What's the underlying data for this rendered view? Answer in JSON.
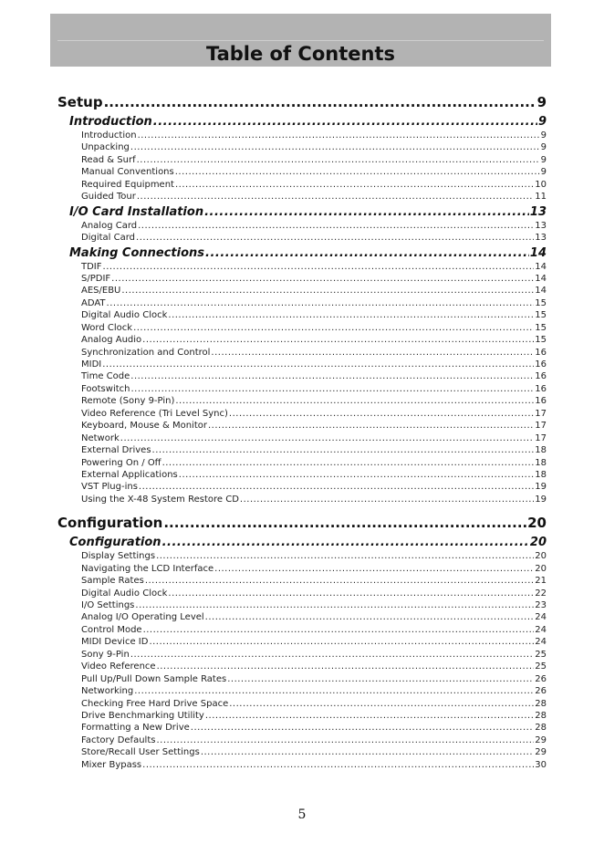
{
  "title": "Table of Contents",
  "sections": [
    {
      "label": "Setup",
      "page": "9",
      "subsections": [
        {
          "label": "Introduction",
          "page": "9",
          "items": [
            {
              "label": "Introduction",
              "page": "9"
            },
            {
              "label": "Unpacking",
              "page": "9"
            },
            {
              "label": "Read & Surf",
              "page": "9"
            },
            {
              "label": "Manual Conventions",
              "page": "9"
            },
            {
              "label": "Required Equipment",
              "page": "10"
            },
            {
              "label": "Guided Tour",
              "page": "11"
            }
          ]
        },
        {
          "label": "I/O Card Installation",
          "page": "13",
          "items": [
            {
              "label": "Analog Card",
              "page": "13"
            },
            {
              "label": "Digital Card",
              "page": "13"
            }
          ]
        },
        {
          "label": "Making Connections",
          "page": "14",
          "items": [
            {
              "label": "TDIF",
              "page": "14"
            },
            {
              "label": "S/PDIF",
              "page": "14"
            },
            {
              "label": "AES/EBU",
              "page": "14"
            },
            {
              "label": "ADAT",
              "page": "15"
            },
            {
              "label": "Digital Audio Clock",
              "page": "15"
            },
            {
              "label": "Word Clock",
              "page": "15"
            },
            {
              "label": "Analog Audio",
              "page": "15"
            },
            {
              "label": "Synchronization and Control",
              "page": "16"
            },
            {
              "label": "MIDI",
              "page": "16"
            },
            {
              "label": "Time Code",
              "page": "16"
            },
            {
              "label": "Footswitch",
              "page": "16"
            },
            {
              "label": "Remote (Sony 9-Pin)",
              "page": "16"
            },
            {
              "label": "Video Reference (Tri Level Sync)",
              "page": "17"
            },
            {
              "label": "Keyboard, Mouse & Monitor",
              "page": "17"
            },
            {
              "label": "Network",
              "page": "17"
            },
            {
              "label": "External Drives",
              "page": "18"
            },
            {
              "label": "Powering On / Off",
              "page": "18"
            },
            {
              "label": "External Applications",
              "page": "18"
            },
            {
              "label": "VST Plug-ins",
              "page": "19"
            },
            {
              "label": "Using the X-48 System Restore CD",
              "page": "19"
            }
          ]
        }
      ]
    },
    {
      "label": "Configuration",
      "page": "20",
      "subsections": [
        {
          "label": "Configuration",
          "page": "20",
          "items": [
            {
              "label": "Display Settings",
              "page": "20"
            },
            {
              "label": "Navigating the LCD Interface",
              "page": "20"
            },
            {
              "label": "Sample Rates",
              "page": "21"
            },
            {
              "label": "Digital Audio Clock",
              "page": "22"
            },
            {
              "label": "I/O Settings",
              "page": "23"
            },
            {
              "label": "Analog I/O Operating Level",
              "page": "24"
            },
            {
              "label": "Control Mode",
              "page": "24"
            },
            {
              "label": "MIDI Device ID",
              "page": "24"
            },
            {
              "label": "Sony 9-Pin",
              "page": "25"
            },
            {
              "label": "Video Reference",
              "page": "25"
            },
            {
              "label": "Pull Up/Pull Down Sample Rates",
              "page": "26"
            },
            {
              "label": "Networking",
              "page": "26"
            },
            {
              "label": "Checking Free Hard Drive Space",
              "page": "28"
            },
            {
              "label": "Drive Benchmarking Utility",
              "page": "28"
            },
            {
              "label": "Formatting a New Drive",
              "page": "28"
            },
            {
              "label": "Factory Defaults",
              "page": "29"
            },
            {
              "label": "Store/Recall User Settings",
              "page": "29"
            },
            {
              "label": "Mixer Bypass",
              "page": "30"
            }
          ]
        }
      ]
    }
  ],
  "page_number": "5"
}
